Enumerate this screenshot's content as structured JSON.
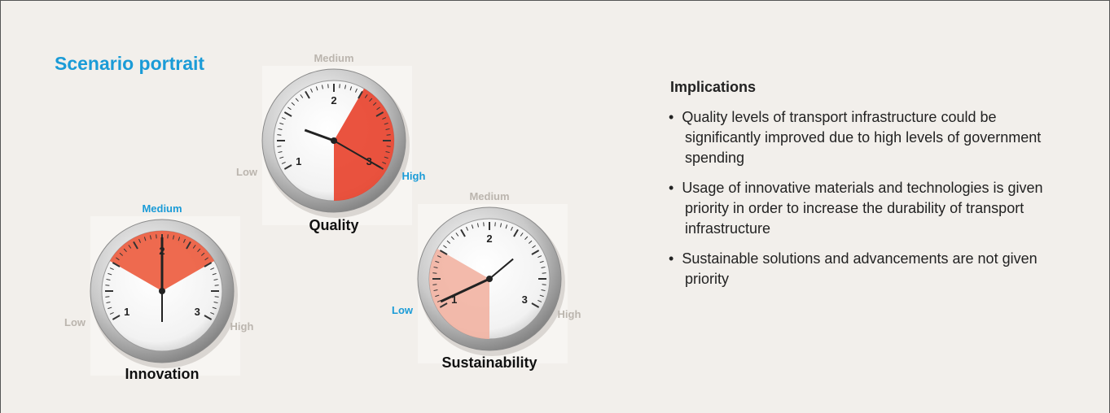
{
  "title": "Scenario portrait",
  "gauges": [
    {
      "name": "Quality",
      "labels": [
        "Low",
        "Medium",
        "High"
      ],
      "numerals": [
        "1",
        "2",
        "3"
      ],
      "active": 2,
      "color": "#e8402a"
    },
    {
      "name": "Innovation",
      "labels": [
        "Low",
        "Medium",
        "High"
      ],
      "numerals": [
        "1",
        "2",
        "3"
      ],
      "active": 1,
      "color": "#ec5a3c"
    },
    {
      "name": "Sustainability",
      "labels": [
        "Low",
        "Medium",
        "High"
      ],
      "numerals": [
        "1",
        "2",
        "3"
      ],
      "active": 0,
      "color": "#f2b3a2"
    }
  ],
  "implications": {
    "heading": "Implications",
    "items": [
      "Quality levels of transport infrastructure could be significantly improved due to high levels of government spending",
      "Usage of innovative materials and technologies is given priority in order to increase the durability of transport infrastructure",
      "Sustainable solutions and advancements are not given priority"
    ]
  }
}
